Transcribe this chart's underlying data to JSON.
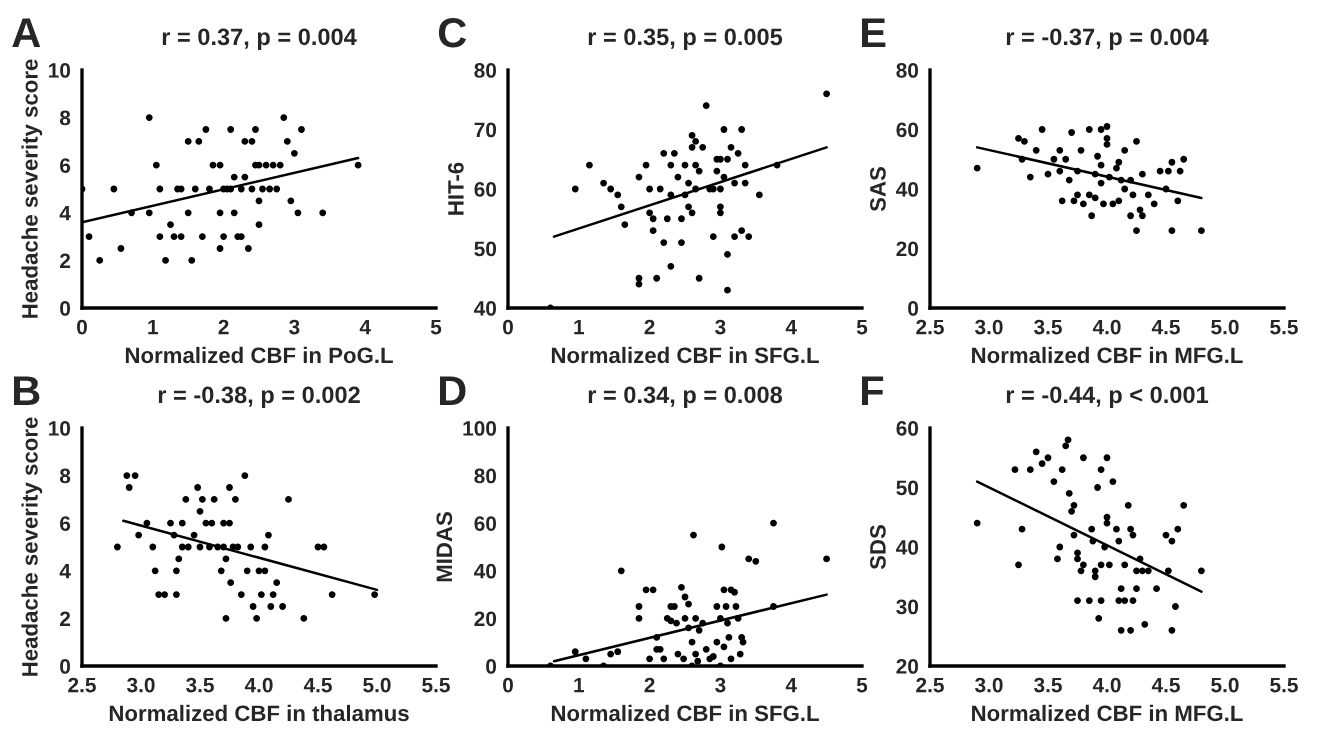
{
  "chart_data": [
    {
      "type": "scatter",
      "title": "r = 0.37, p = 0.004",
      "xlabel": "Normalized CBF in PoG.L",
      "ylabel": "Headache severity score",
      "annotations": [
        "A"
      ],
      "xlim": [
        0,
        5
      ],
      "xticks": [
        0,
        1,
        2,
        3,
        4,
        5
      ],
      "ylim": [
        0,
        10
      ],
      "yticks": [
        0,
        2,
        4,
        6,
        8,
        10
      ],
      "grid": false,
      "marker": "circle",
      "series": [
        {
          "type": "scatter",
          "color": "#000000",
          "x": [
            0,
            0.1,
            0.25,
            0.45,
            0.55,
            0.7,
            0.95,
            0.95,
            1.05,
            1.1,
            1.1,
            1.18,
            1.25,
            1.3,
            1.35,
            1.4,
            1.4,
            1.5,
            1.5,
            1.55,
            1.6,
            1.65,
            1.7,
            1.75,
            1.8,
            1.85,
            1.95,
            1.95,
            1.95,
            2.0,
            2.0,
            2.05,
            2.1,
            2.1,
            2.15,
            2.15,
            2.2,
            2.25,
            2.25,
            2.3,
            2.3,
            2.35,
            2.4,
            2.4,
            2.45,
            2.45,
            2.5,
            2.5,
            2.5,
            2.55,
            2.6,
            2.65,
            2.7,
            2.75,
            2.8,
            2.85,
            2.9,
            2.95,
            3.0,
            3.05,
            3.1,
            3.4,
            3.9
          ],
          "values": [
            5,
            3,
            2,
            5,
            2.5,
            4,
            8,
            4,
            6,
            5,
            3,
            2,
            3.5,
            3,
            5,
            3,
            5,
            7,
            4,
            2,
            5,
            7,
            3,
            7.5,
            5,
            6,
            6,
            4,
            2.5,
            3,
            5,
            5,
            7.5,
            5,
            5.5,
            4,
            3,
            3,
            5,
            7,
            5.5,
            2.5,
            7,
            5,
            7.5,
            6,
            3.5,
            4.5,
            6,
            5,
            6,
            5,
            6,
            5,
            6,
            8,
            7,
            4.5,
            6.5,
            4,
            7.5,
            4,
            6
          ]
        },
        {
          "type": "line",
          "color": "#000000",
          "marker": "none",
          "x": [
            0,
            3.9
          ],
          "values": [
            3.6,
            6.3
          ]
        }
      ]
    },
    {
      "type": "scatter",
      "title": "r = 0.35, p = 0.005",
      "xlabel": "Normalized CBF in SFG.L",
      "ylabel": "HIT-6",
      "annotations": [
        "C"
      ],
      "xlim": [
        0,
        5
      ],
      "xticks": [
        0,
        1,
        2,
        3,
        4,
        5
      ],
      "ylim": [
        40,
        80
      ],
      "yticks": [
        40,
        50,
        60,
        70,
        80
      ],
      "grid": false,
      "marker": "circle",
      "series": [
        {
          "type": "scatter",
          "color": "#000000",
          "x": [
            0.6,
            0.95,
            1.15,
            1.35,
            1.45,
            1.55,
            1.6,
            1.65,
            1.85,
            1.85,
            1.85,
            1.95,
            2.0,
            2.05,
            2.05,
            2.1,
            2.15,
            2.2,
            2.2,
            2.25,
            2.3,
            2.3,
            2.3,
            2.35,
            2.4,
            2.45,
            2.45,
            2.5,
            2.5,
            2.55,
            2.55,
            2.6,
            2.6,
            2.6,
            2.65,
            2.65,
            2.65,
            2.7,
            2.7,
            2.75,
            2.8,
            2.85,
            2.9,
            2.95,
            2.95,
            3.0,
            3.0,
            3.0,
            3.05,
            3.05,
            3.1,
            3.1,
            3.1,
            3.15,
            3.2,
            3.2,
            3.25,
            3.3,
            3.3,
            3.35,
            3.35,
            3.4,
            3.55,
            3.8,
            4.5,
            3.0,
            2.9,
            2.0
          ],
          "values": [
            40,
            60,
            64,
            61,
            60,
            59,
            57,
            54,
            62,
            45,
            44,
            64,
            56,
            55,
            53,
            45,
            60,
            51,
            66,
            55,
            64,
            59,
            47,
            66,
            62,
            55,
            51,
            64,
            59,
            61,
            57,
            56,
            67,
            69,
            68,
            64,
            60,
            45,
            63,
            67,
            74,
            60,
            52,
            65,
            63,
            60,
            57,
            56,
            70,
            62,
            65,
            49,
            43,
            67,
            61,
            52,
            66,
            70,
            53,
            64,
            61,
            52,
            59,
            64,
            76,
            65,
            60,
            60
          ]
        },
        {
          "type": "line",
          "color": "#000000",
          "marker": "none",
          "x": [
            0.65,
            4.5
          ],
          "values": [
            52,
            67
          ]
        }
      ]
    },
    {
      "type": "scatter",
      "title": "r = -0.37, p = 0.004",
      "xlabel": "Normalized CBF in MFG.L",
      "ylabel": "SAS",
      "annotations": [
        "E"
      ],
      "xlim": [
        2.5,
        5.5
      ],
      "xticks": [
        {
          "value": 2.5,
          "label": "2.5"
        },
        {
          "value": 3,
          "label": "3.0"
        },
        {
          "value": 3.5,
          "label": "3.5"
        },
        {
          "value": 4,
          "label": "4.0"
        },
        {
          "value": 4.5,
          "label": "4.5"
        },
        {
          "value": 5,
          "label": "5.0"
        },
        {
          "value": 5.5,
          "label": "5.5"
        }
      ],
      "ylim": [
        0,
        80
      ],
      "yticks": [
        0,
        20,
        40,
        60,
        80
      ],
      "grid": false,
      "marker": "circle",
      "series": [
        {
          "type": "scatter",
          "color": "#000000",
          "x": [
            2.9,
            3.25,
            3.28,
            3.3,
            3.35,
            3.4,
            3.45,
            3.5,
            3.55,
            3.6,
            3.6,
            3.62,
            3.65,
            3.68,
            3.7,
            3.72,
            3.75,
            3.75,
            3.78,
            3.8,
            3.85,
            3.85,
            3.87,
            3.9,
            3.9,
            3.92,
            3.95,
            3.95,
            3.95,
            3.97,
            4.0,
            4.0,
            4.0,
            4.02,
            4.05,
            4.08,
            4.1,
            4.1,
            4.12,
            4.15,
            4.15,
            4.2,
            4.2,
            4.22,
            4.25,
            4.25,
            4.28,
            4.3,
            4.3,
            4.35,
            4.4,
            4.45,
            4.5,
            4.52,
            4.55,
            4.55,
            4.6,
            4.62,
            4.65,
            4.8
          ],
          "values": [
            47,
            57,
            50,
            56,
            44,
            53,
            60,
            45,
            50,
            53,
            46,
            36,
            50,
            43,
            59,
            36,
            38,
            46,
            53,
            35,
            60,
            38,
            31,
            45,
            37,
            51,
            60,
            48,
            42,
            35,
            61,
            57,
            55,
            44,
            35,
            47,
            49,
            36,
            43,
            53,
            40,
            43,
            31,
            38,
            26,
            56,
            33,
            31,
            45,
            38,
            35,
            46,
            40,
            46,
            26,
            49,
            36,
            46,
            50,
            26
          ]
        },
        {
          "type": "line",
          "color": "#000000",
          "marker": "none",
          "x": [
            2.9,
            4.8
          ],
          "values": [
            54,
            37
          ]
        }
      ]
    },
    {
      "type": "scatter",
      "title": "r = -0.38, p = 0.002",
      "xlabel": "Normalized CBF in thalamus",
      "ylabel": "Headache severity score",
      "annotations": [
        "B"
      ],
      "xlim": [
        2.5,
        5.5
      ],
      "xticks": [
        {
          "value": 2.5,
          "label": "2.5"
        },
        {
          "value": 3,
          "label": "3.0"
        },
        {
          "value": 3.5,
          "label": "3.5"
        },
        {
          "value": 4,
          "label": "4.0"
        },
        {
          "value": 4.5,
          "label": "4.5"
        },
        {
          "value": 5,
          "label": "5.0"
        },
        {
          "value": 5.5,
          "label": "5.5"
        }
      ],
      "ylim": [
        0,
        10
      ],
      "yticks": [
        0,
        2,
        4,
        6,
        8,
        10
      ],
      "grid": false,
      "marker": "circle",
      "series": [
        {
          "type": "scatter",
          "color": "#000000",
          "x": [
            2.8,
            2.88,
            2.9,
            2.95,
            2.98,
            3.05,
            3.1,
            3.12,
            3.15,
            3.2,
            3.25,
            3.28,
            3.3,
            3.3,
            3.32,
            3.35,
            3.35,
            3.38,
            3.4,
            3.45,
            3.48,
            3.5,
            3.5,
            3.52,
            3.55,
            3.58,
            3.6,
            3.62,
            3.65,
            3.68,
            3.7,
            3.72,
            3.75,
            3.75,
            3.76,
            3.78,
            3.8,
            3.82,
            3.85,
            3.88,
            3.9,
            3.93,
            3.95,
            3.98,
            4.0,
            4.02,
            4.05,
            4.05,
            4.08,
            4.1,
            4.12,
            4.15,
            4.2,
            4.25,
            4.38,
            4.5,
            4.55,
            4.62,
            4.98,
            3.72,
            3.7
          ],
          "values": [
            5,
            8,
            7.5,
            8,
            5.5,
            6,
            5,
            4,
            3,
            3,
            6,
            5.5,
            4,
            3,
            4.5,
            5,
            6,
            7,
            5,
            5.5,
            7.5,
            6.5,
            5,
            7,
            6,
            5,
            6,
            7,
            5,
            4,
            5,
            4.5,
            7.5,
            6,
            3.5,
            5,
            7,
            5,
            3,
            8,
            4,
            5,
            2.5,
            2,
            4,
            3,
            4,
            5,
            5.5,
            2.5,
            3,
            3.5,
            2.5,
            7,
            2,
            5,
            5,
            3,
            3,
            2,
            6
          ]
        },
        {
          "type": "line",
          "color": "#000000",
          "marker": "none",
          "x": [
            2.85,
            5.0
          ],
          "values": [
            6.1,
            3.2
          ]
        }
      ]
    },
    {
      "type": "scatter",
      "title": "r = 0.34, p = 0.008",
      "xlabel": "Normalized CBF in SFG.L",
      "ylabel": "MIDAS",
      "annotations": [
        "D"
      ],
      "xlim": [
        0,
        5
      ],
      "xticks": [
        0,
        1,
        2,
        3,
        4,
        5
      ],
      "ylim": [
        0,
        100
      ],
      "yticks": [
        0,
        20,
        40,
        60,
        80,
        100
      ],
      "grid": false,
      "marker": "circle",
      "series": [
        {
          "type": "scatter",
          "color": "#000000",
          "x": [
            0.6,
            0.95,
            1.1,
            1.35,
            1.45,
            1.55,
            1.6,
            1.85,
            1.85,
            1.95,
            2.0,
            2.05,
            2.1,
            2.1,
            2.15,
            2.2,
            2.25,
            2.3,
            2.3,
            2.35,
            2.38,
            2.4,
            2.45,
            2.48,
            2.5,
            2.5,
            2.55,
            2.55,
            2.6,
            2.6,
            2.62,
            2.65,
            2.65,
            2.68,
            2.7,
            2.75,
            2.8,
            2.85,
            2.9,
            2.95,
            2.95,
            3.0,
            3.0,
            3.02,
            3.05,
            3.05,
            3.08,
            3.1,
            3.12,
            3.15,
            3.15,
            3.2,
            3.22,
            3.25,
            3.28,
            3.3,
            3.32,
            3.4,
            3.5,
            3.75,
            3.75,
            4.5
          ],
          "values": [
            0,
            6,
            3,
            0,
            5,
            6,
            40,
            25,
            20,
            32,
            3,
            32,
            12,
            7,
            7,
            3,
            20,
            25,
            19,
            25,
            18,
            5,
            33,
            3,
            29,
            20,
            26,
            16,
            0,
            10,
            55,
            20,
            5,
            2,
            15,
            18,
            7,
            3,
            4,
            25,
            10,
            20,
            0,
            50,
            32,
            8,
            25,
            18,
            12,
            3,
            32,
            31,
            25,
            20,
            5,
            12,
            10,
            45,
            44,
            60,
            25,
            45
          ]
        },
        {
          "type": "line",
          "color": "#000000",
          "marker": "none",
          "x": [
            0.65,
            4.5
          ],
          "values": [
            2,
            30
          ]
        }
      ]
    },
    {
      "type": "scatter",
      "title": "r = -0.44, p < 0.001",
      "xlabel": "Normalized CBF in MFG.L",
      "ylabel": "SDS",
      "annotations": [
        "F"
      ],
      "xlim": [
        2.5,
        5.5
      ],
      "xticks": [
        {
          "value": 2.5,
          "label": "2.5"
        },
        {
          "value": 3,
          "label": "3.0"
        },
        {
          "value": 3.5,
          "label": "3.5"
        },
        {
          "value": 4,
          "label": "4.0"
        },
        {
          "value": 4.5,
          "label": "4.5"
        },
        {
          "value": 5,
          "label": "5.0"
        },
        {
          "value": 5.5,
          "label": "5.5"
        }
      ],
      "ylim": [
        20,
        60
      ],
      "yticks": [
        20,
        30,
        40,
        50,
        60
      ],
      "grid": false,
      "marker": "circle",
      "series": [
        {
          "type": "scatter",
          "color": "#000000",
          "x": [
            2.9,
            3.22,
            3.25,
            3.28,
            3.35,
            3.4,
            3.45,
            3.5,
            3.55,
            3.58,
            3.6,
            3.62,
            3.65,
            3.67,
            3.68,
            3.7,
            3.72,
            3.72,
            3.75,
            3.75,
            3.75,
            3.78,
            3.8,
            3.8,
            3.85,
            3.87,
            3.88,
            3.9,
            3.9,
            3.92,
            3.93,
            3.95,
            3.95,
            3.95,
            3.98,
            4.0,
            4.0,
            4.0,
            4.02,
            4.05,
            4.08,
            4.1,
            4.1,
            4.12,
            4.12,
            4.15,
            4.15,
            4.18,
            4.2,
            4.2,
            4.22,
            4.22,
            4.25,
            4.25,
            4.28,
            4.3,
            4.32,
            4.35,
            4.42,
            4.5,
            4.52,
            4.55,
            4.55,
            4.58,
            4.6,
            4.65,
            4.8
          ],
          "values": [
            44,
            53,
            37,
            43,
            53,
            56,
            54,
            55,
            51,
            38,
            40,
            53,
            57,
            58,
            49,
            46,
            47,
            42,
            38,
            39,
            31,
            36,
            55,
            37,
            31,
            43,
            41,
            36,
            35,
            50,
            28,
            31,
            53,
            37,
            40,
            55,
            45,
            44,
            37,
            51,
            43,
            41,
            31,
            33,
            26,
            37,
            31,
            47,
            43,
            26,
            42,
            31,
            36,
            33,
            38,
            36,
            27,
            36,
            33,
            42,
            36,
            26,
            41,
            30,
            43,
            47,
            36
          ]
        },
        {
          "type": "line",
          "color": "#000000",
          "marker": "none",
          "x": [
            2.9,
            4.8
          ],
          "values": [
            51,
            32.5
          ]
        }
      ]
    }
  ]
}
